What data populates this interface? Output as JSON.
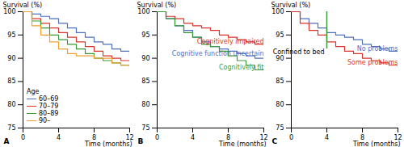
{
  "chart_data": [
    {
      "type": "line",
      "title": "A",
      "x_label": "Time (months)",
      "y_label": "Survival (%)",
      "x": [
        0,
        1,
        2,
        3,
        4,
        5,
        6,
        7,
        8,
        9,
        10,
        11,
        12
      ],
      "xlim": [
        0,
        12
      ],
      "xticks": [
        0,
        4,
        8,
        12
      ],
      "ylim": [
        75,
        100
      ],
      "yticks": [
        75,
        80,
        85,
        90,
        95,
        100
      ],
      "legend": "bottom-left",
      "legend_title": "Age",
      "series": [
        {
          "name": "60–69",
          "color": "#4f6fbf",
          "values": [
            100,
            99.5,
            99,
            98.5,
            97.5,
            96.5,
            95.5,
            94.5,
            93.5,
            93,
            92,
            91.5,
            90.5
          ]
        },
        {
          "name": "70–79",
          "color": "#d9342b",
          "values": [
            100,
            98.5,
            97.5,
            96.5,
            95.5,
            94.5,
            93.5,
            92.5,
            91.5,
            90.5,
            90,
            89.5,
            89
          ]
        },
        {
          "name": "80–89",
          "color": "#3a9a3a",
          "values": [
            100,
            98,
            96.5,
            95,
            94,
            93,
            92,
            91,
            90,
            89.5,
            89,
            88.5,
            88
          ]
        },
        {
          "name": "90–",
          "color": "#f0a030",
          "values": [
            100,
            97,
            95,
            93.5,
            92,
            91,
            90.5,
            90.5,
            90,
            90,
            89,
            88.5,
            88.5
          ]
        }
      ]
    },
    {
      "type": "line",
      "title": "B",
      "x_label": "Time (months)",
      "y_label": "Survival (%)",
      "x": [
        0,
        1,
        2,
        3,
        4,
        5,
        6,
        7,
        8,
        9,
        10,
        11,
        12
      ],
      "xlim": [
        0,
        12
      ],
      "xticks": [
        0,
        4,
        8,
        12
      ],
      "ylim": [
        75,
        100
      ],
      "yticks": [
        75,
        80,
        85,
        90,
        95,
        100
      ],
      "legend": "inline",
      "series": [
        {
          "name": "Cognitively impaired",
          "color": "#d9342b",
          "values": [
            100,
            99,
            98.5,
            97.5,
            97,
            96.5,
            96,
            95,
            94.5,
            94,
            93.5,
            93,
            92.5
          ]
        },
        {
          "name": "Cognitive function uncertain",
          "color": "#4f6fbf",
          "values": [
            100,
            98.5,
            97,
            96,
            94.5,
            93.5,
            92.5,
            92,
            91.5,
            91,
            90.5,
            90,
            90
          ]
        },
        {
          "name": "Cognitively fit",
          "color": "#3a9a3a",
          "values": [
            100,
            98.5,
            97,
            95.5,
            94.5,
            93,
            92.5,
            91.5,
            90.5,
            89.5,
            88.5,
            87.5,
            87
          ]
        }
      ]
    },
    {
      "type": "line",
      "title": "C",
      "x_label": "Time (months)",
      "y_label": "Survival (%)",
      "x": [
        0,
        1,
        2,
        3,
        4,
        5,
        6,
        7,
        8,
        9,
        10,
        11,
        12
      ],
      "xlim": [
        0,
        12
      ],
      "xticks": [
        0,
        4,
        8,
        12
      ],
      "ylim": [
        75,
        100
      ],
      "yticks": [
        75,
        80,
        85,
        90,
        95,
        100
      ],
      "legend": "inline",
      "series": [
        {
          "name": "No problems",
          "color": "#4f6fbf",
          "values": [
            100,
            98.5,
            97.5,
            96.5,
            95.5,
            95,
            94.5,
            94,
            93,
            92.5,
            92,
            91.5,
            91
          ]
        },
        {
          "name": "Some problems",
          "color": "#d9342b",
          "values": [
            100,
            97.5,
            96,
            95,
            93.5,
            92.5,
            91.5,
            91,
            90,
            89.5,
            89,
            88.5,
            88
          ]
        }
      ],
      "annotations": [
        {
          "text": "Confined to bed",
          "x": 4,
          "y": [
            100,
            92
          ],
          "color": "#3a9a3a"
        }
      ]
    }
  ]
}
